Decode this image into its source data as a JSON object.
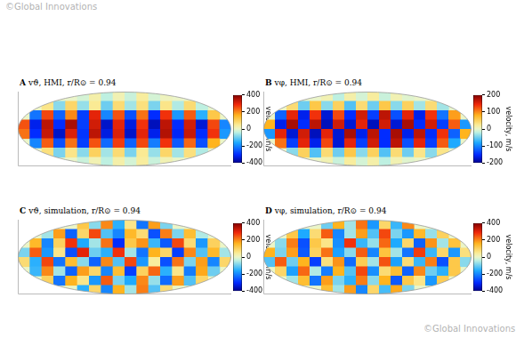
{
  "chart_data": [
    {
      "type": "heatmap",
      "panel": "A",
      "title": "vϑ, HMI, r/R⊙ = 0.94",
      "tick_labels": false,
      "cells": [
        [
          null,
          null,
          null,
          null,
          null,
          -20,
          30,
          -40,
          20,
          -30,
          40,
          -20,
          10,
          null,
          null,
          null,
          null,
          null
        ],
        [
          null,
          null,
          60,
          -80,
          90,
          -70,
          50,
          -100,
          80,
          -60,
          70,
          -90,
          60,
          -50,
          80,
          -40,
          null,
          null
        ],
        [
          null,
          -220,
          260,
          -240,
          200,
          -280,
          300,
          -200,
          250,
          -260,
          220,
          -300,
          280,
          -180,
          240,
          -150,
          120,
          null
        ],
        [
          250,
          -320,
          340,
          -300,
          360,
          -280,
          320,
          -350,
          300,
          -330,
          280,
          -360,
          340,
          -300,
          320,
          -340,
          260,
          -200
        ],
        [
          220,
          -300,
          330,
          -350,
          310,
          -290,
          340,
          -330,
          310,
          -350,
          300,
          -320,
          350,
          -310,
          330,
          -300,
          280,
          -180
        ],
        [
          null,
          -200,
          240,
          -260,
          220,
          -280,
          250,
          -230,
          270,
          -240,
          260,
          -210,
          280,
          -250,
          230,
          -260,
          160,
          null
        ],
        [
          null,
          null,
          70,
          -90,
          60,
          -80,
          100,
          -60,
          80,
          -90,
          50,
          -70,
          90,
          -60,
          70,
          -50,
          null,
          null
        ],
        [
          null,
          null,
          null,
          null,
          null,
          -30,
          20,
          -40,
          30,
          -20,
          40,
          -30,
          20,
          null,
          null,
          null,
          null,
          null
        ]
      ],
      "colorbar": {
        "label": "velocity, m/s",
        "range": [
          -400,
          400
        ],
        "ticks": [
          400,
          200,
          0,
          -200,
          -400
        ]
      }
    },
    {
      "type": "heatmap",
      "panel": "B",
      "title": "vφ, HMI, r/R⊙ = 0.94",
      "tick_labels": false,
      "cells": [
        [
          null,
          null,
          null,
          null,
          null,
          10,
          -20,
          15,
          -10,
          20,
          -15,
          10,
          -5,
          null,
          null,
          null,
          null,
          null
        ],
        [
          null,
          null,
          40,
          -50,
          60,
          -40,
          50,
          -60,
          40,
          -50,
          60,
          -40,
          50,
          -30,
          40,
          -30,
          null,
          null
        ],
        [
          null,
          -120,
          150,
          -160,
          140,
          -170,
          130,
          -150,
          160,
          -140,
          170,
          -130,
          150,
          -160,
          140,
          -110,
          90,
          null
        ],
        [
          80,
          -160,
          180,
          -150,
          170,
          -180,
          160,
          -170,
          150,
          -180,
          160,
          -170,
          180,
          -150,
          160,
          -140,
          120,
          -90
        ],
        [
          -90,
          150,
          -170,
          160,
          -180,
          150,
          -170,
          180,
          -160,
          170,
          -150,
          180,
          -160,
          170,
          -150,
          140,
          -120,
          80
        ],
        [
          null,
          110,
          -140,
          150,
          -160,
          130,
          -170,
          150,
          -140,
          160,
          -150,
          170,
          -130,
          150,
          -140,
          120,
          -80,
          null
        ],
        [
          null,
          null,
          -40,
          50,
          -60,
          40,
          -50,
          60,
          -40,
          50,
          -60,
          40,
          -50,
          30,
          -40,
          30,
          null,
          null
        ],
        [
          null,
          null,
          null,
          null,
          null,
          10,
          -15,
          20,
          -10,
          15,
          -20,
          10,
          -5,
          null,
          null,
          null,
          null,
          null
        ]
      ],
      "colorbar": {
        "label": "velocity, m/s",
        "range": [
          -200,
          200
        ],
        "ticks": [
          200,
          100,
          0,
          -100,
          -200
        ]
      }
    },
    {
      "type": "heatmap",
      "panel": "C",
      "title": "vϑ, simulation, r/R⊙ = 0.94",
      "tick_labels": false,
      "cells": [
        [
          null,
          null,
          null,
          null,
          null,
          120,
          -80,
          200,
          -150,
          60,
          -220,
          180,
          -90,
          null,
          null,
          null,
          null,
          null
        ],
        [
          null,
          null,
          -60,
          180,
          -240,
          90,
          260,
          -120,
          -200,
          150,
          80,
          -260,
          210,
          -90,
          140,
          -50,
          null,
          null
        ],
        [
          null,
          150,
          -200,
          100,
          280,
          -160,
          -60,
          220,
          -300,
          120,
          190,
          -140,
          -250,
          260,
          80,
          -180,
          100,
          null
        ],
        [
          -90,
          240,
          -180,
          60,
          -260,
          300,
          -100,
          -150,
          280,
          -60,
          -220,
          160,
          90,
          -280,
          200,
          -120,
          150,
          -60
        ],
        [
          80,
          -150,
          260,
          -220,
          140,
          -80,
          -240,
          200,
          -120,
          260,
          -180,
          40,
          -260,
          220,
          -90,
          180,
          -200,
          90
        ],
        [
          null,
          -140,
          200,
          -60,
          -240,
          180,
          90,
          -200,
          140,
          -280,
          100,
          230,
          -150,
          60,
          -210,
          170,
          -100,
          null
        ],
        [
          null,
          null,
          100,
          -220,
          160,
          60,
          -180,
          240,
          -90,
          -160,
          200,
          -70,
          -230,
          180,
          -120,
          90,
          null,
          null
        ],
        [
          null,
          null,
          null,
          null,
          null,
          -150,
          90,
          -200,
          160,
          -60,
          210,
          -120,
          80,
          null,
          null,
          null,
          null,
          null
        ]
      ],
      "colorbar": {
        "label": "velocity, m/s",
        "range": [
          -400,
          400
        ],
        "ticks": [
          400,
          200,
          0,
          -200,
          -400
        ]
      }
    },
    {
      "type": "heatmap",
      "panel": "D",
      "title": "vφ, simulation, r/R⊙ = 0.94",
      "tick_labels": false,
      "cells": [
        [
          null,
          null,
          null,
          null,
          null,
          -100,
          160,
          -60,
          220,
          -180,
          90,
          -140,
          200,
          null,
          null,
          null,
          null,
          null
        ],
        [
          null,
          null,
          120,
          -160,
          80,
          240,
          -200,
          -60,
          180,
          -120,
          260,
          -90,
          -180,
          150,
          -70,
          100,
          null,
          null
        ],
        [
          null,
          -80,
          210,
          -260,
          120,
          60,
          -190,
          280,
          -140,
          -70,
          230,
          -160,
          90,
          -240,
          190,
          -60,
          130,
          null
        ],
        [
          160,
          -90,
          180,
          -250,
          100,
          220,
          -170,
          -80,
          240,
          -200,
          130,
          -60,
          -220,
          270,
          -140,
          90,
          -180,
          70
        ],
        [
          -120,
          240,
          -100,
          160,
          -280,
          70,
          190,
          -230,
          110,
          -60,
          250,
          -170,
          80,
          -140,
          210,
          -260,
          120,
          -80
        ],
        [
          null,
          90,
          -170,
          230,
          -50,
          -210,
          160,
          -120,
          260,
          -190,
          80,
          140,
          -240,
          200,
          -100,
          -150,
          120,
          null
        ],
        [
          null,
          null,
          -60,
          140,
          -220,
          180,
          -90,
          -150,
          210,
          -80,
          160,
          -250,
          120,
          60,
          -180,
          110,
          null,
          null
        ],
        [
          null,
          null,
          null,
          null,
          null,
          140,
          -60,
          180,
          -200,
          90,
          -130,
          170,
          -90,
          null,
          null,
          null,
          null,
          null
        ]
      ],
      "colorbar": {
        "label": "velocity, m/s",
        "range": [
          -400,
          400
        ],
        "ticks": [
          400,
          200,
          0,
          -200,
          -400
        ]
      }
    }
  ],
  "watermarks": [
    "©Global Innovations",
    "©Global Innovations"
  ]
}
